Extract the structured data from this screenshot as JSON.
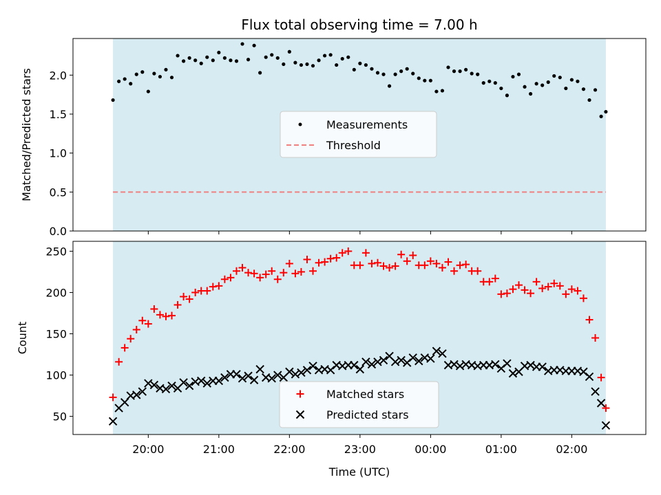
{
  "chart_data": [
    {
      "type": "scatter",
      "title": "Flux total observing time = 7.00 h",
      "xlabel": "",
      "ylabel": "Matched/Predicted stars",
      "ylim": [
        0,
        2.47
      ],
      "yticks": [
        "0.0",
        "0.5",
        "1.0",
        "1.5",
        "2.0"
      ],
      "ytick_values": [
        0,
        0.5,
        1.0,
        1.5,
        2.0
      ],
      "threshold": 0.5,
      "shaded_span": [
        "19:30",
        "02:29"
      ],
      "legend_placement": "center",
      "legend": [
        "Measurements",
        "Threshold"
      ],
      "colors": {
        "measurements": "#000000",
        "threshold": "#f08080",
        "shade": "#add8e6"
      },
      "x": [
        "19:30",
        "19:35",
        "19:40",
        "19:45",
        "19:50",
        "19:55",
        "20:00",
        "20:05",
        "20:10",
        "20:15",
        "20:20",
        "20:25",
        "20:30",
        "20:35",
        "20:40",
        "20:45",
        "20:50",
        "20:55",
        "21:00",
        "21:05",
        "21:10",
        "21:15",
        "21:20",
        "21:25",
        "21:30",
        "21:35",
        "21:40",
        "21:45",
        "21:50",
        "21:55",
        "22:00",
        "22:05",
        "22:10",
        "22:15",
        "22:20",
        "22:25",
        "22:30",
        "22:35",
        "22:40",
        "22:45",
        "22:50",
        "22:55",
        "23:00",
        "23:05",
        "23:10",
        "23:15",
        "23:20",
        "23:25",
        "23:30",
        "23:35",
        "23:40",
        "23:45",
        "23:50",
        "23:55",
        "00:00",
        "00:05",
        "00:10",
        "00:15",
        "00:20",
        "00:25",
        "00:30",
        "00:35",
        "00:40",
        "00:45",
        "00:50",
        "00:55",
        "01:00",
        "01:05",
        "01:10",
        "01:15",
        "01:20",
        "01:25",
        "01:30",
        "01:35",
        "01:40",
        "01:45",
        "01:50",
        "01:55",
        "02:00",
        "02:05",
        "02:10",
        "02:15",
        "02:20",
        "02:25",
        "02:29"
      ],
      "series": [
        {
          "values": [
            1.68,
            1.92,
            1.95,
            1.89,
            2.01,
            2.04,
            1.79,
            2.02,
            1.98,
            2.07,
            1.97,
            2.25,
            2.18,
            2.22,
            2.19,
            2.15,
            2.23,
            2.19,
            2.29,
            2.22,
            2.19,
            2.18,
            2.4,
            2.2,
            2.38,
            2.03,
            2.23,
            2.26,
            2.22,
            2.14,
            2.3,
            2.16,
            2.13,
            2.14,
            2.12,
            2.19,
            2.25,
            2.26,
            2.13,
            2.21,
            2.23,
            2.07,
            2.15,
            2.13,
            2.08,
            2.03,
            2.01,
            1.86,
            2.01,
            2.05,
            2.08,
            2.02,
            1.96,
            1.93,
            1.93,
            1.79,
            1.8,
            2.1,
            2.05,
            2.05,
            2.07,
            2.02,
            2.01,
            1.9,
            1.92,
            1.9,
            1.83,
            1.74,
            1.98,
            2.01,
            1.85,
            1.76,
            1.89,
            1.87,
            1.91,
            1.99,
            1.97,
            1.83,
            1.94,
            1.92,
            1.82,
            1.68,
            1.81,
            1.47,
            1.53
          ]
        }
      ]
    },
    {
      "type": "scatter",
      "title": "",
      "xlabel": "Time (UTC)",
      "ylabel": "Count",
      "ylim": [
        28,
        262
      ],
      "yticks": [
        "50",
        "100",
        "150",
        "200",
        "250"
      ],
      "ytick_values": [
        50,
        100,
        150,
        200,
        250
      ],
      "xticks": [
        "20:00",
        "21:00",
        "22:00",
        "23:00",
        "00:00",
        "01:00",
        "02:00"
      ],
      "shaded_span": [
        "19:30",
        "02:29"
      ],
      "legend_placement": "lower center",
      "colors": {
        "matched": "#ff0000",
        "predicted": "#000000",
        "shade": "#add8e6"
      },
      "series": [
        {
          "name": "Matched stars",
          "values": [
            73,
            116,
            133,
            144,
            155,
            166,
            162,
            180,
            173,
            171,
            172,
            185,
            195,
            192,
            200,
            202,
            202,
            207,
            208,
            216,
            218,
            226,
            230,
            224,
            223,
            218,
            222,
            226,
            216,
            224,
            235,
            223,
            225,
            240,
            226,
            236,
            237,
            241,
            242,
            248,
            250,
            233,
            233,
            248,
            235,
            236,
            232,
            230,
            232,
            246,
            238,
            245,
            233,
            233,
            238,
            235,
            230,
            237,
            226,
            233,
            234,
            226,
            226,
            213,
            213,
            217,
            198,
            199,
            204,
            209,
            203,
            199,
            213,
            205,
            207,
            211,
            208,
            198,
            204,
            202,
            193,
            167,
            145,
            97,
            60
          ]
        },
        {
          "name": "Predicted stars",
          "values": [
            44,
            60,
            67,
            75,
            76,
            80,
            90,
            88,
            84,
            83,
            87,
            84,
            91,
            87,
            92,
            93,
            90,
            93,
            93,
            97,
            101,
            101,
            96,
            99,
            94,
            107,
            97,
            96,
            100,
            97,
            104,
            101,
            103,
            106,
            111,
            106,
            107,
            106,
            112,
            111,
            112,
            112,
            107,
            116,
            113,
            116,
            118,
            123,
            116,
            118,
            115,
            121,
            117,
            121,
            120,
            129,
            126,
            112,
            113,
            111,
            113,
            112,
            111,
            112,
            112,
            113,
            108,
            114,
            102,
            104,
            111,
            112,
            110,
            110,
            105,
            106,
            106,
            105,
            105,
            105,
            104,
            98,
            80,
            66,
            39
          ]
        }
      ]
    }
  ]
}
